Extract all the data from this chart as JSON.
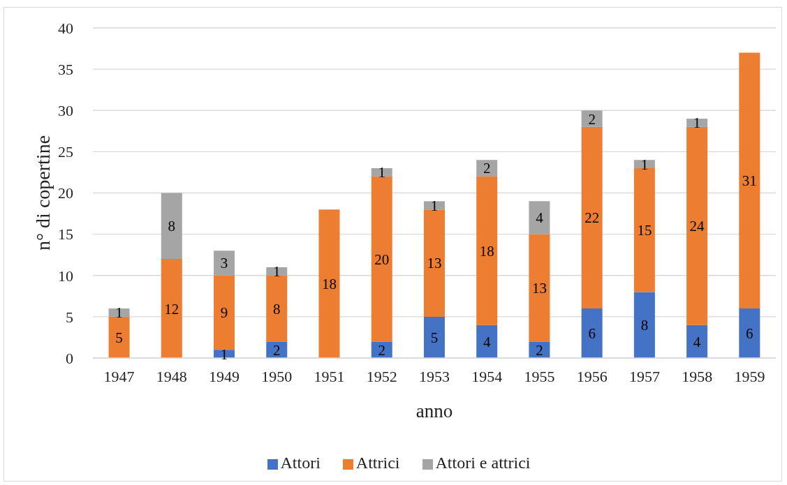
{
  "chart_data": {
    "type": "bar",
    "stacked": true,
    "categories": [
      "1947",
      "1948",
      "1949",
      "1950",
      "1951",
      "1952",
      "1953",
      "1954",
      "1955",
      "1956",
      "1957",
      "1958",
      "1959"
    ],
    "series": [
      {
        "name": "Attori",
        "color": "#4472c4",
        "values": [
          null,
          null,
          1,
          2,
          null,
          2,
          5,
          4,
          2,
          6,
          8,
          4,
          6
        ]
      },
      {
        "name": "Attrici",
        "color": "#ed7d31",
        "values": [
          5,
          12,
          9,
          8,
          18,
          20,
          13,
          18,
          13,
          22,
          15,
          24,
          31
        ]
      },
      {
        "name": "Attori e attrici",
        "color": "#a5a5a5",
        "values": [
          1,
          8,
          3,
          1,
          null,
          1,
          1,
          2,
          4,
          2,
          1,
          1,
          null
        ]
      }
    ],
    "xlabel": "anno",
    "ylabel": "n° di copertine",
    "ylim": [
      0,
      40
    ],
    "yticks": [
      0,
      5,
      10,
      15,
      20,
      25,
      30,
      35,
      40
    ],
    "grid": "y",
    "legend": "bottom",
    "data_labels": true
  }
}
